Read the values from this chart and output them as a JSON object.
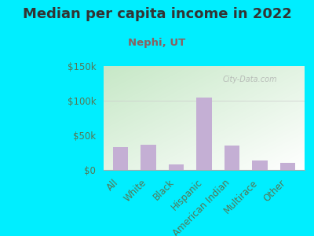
{
  "title": "Median per capita income in 2022",
  "subtitle": "Nephi, UT",
  "categories": [
    "All",
    "White",
    "Black",
    "Hispanic",
    "American Indian",
    "Multirace",
    "Other"
  ],
  "values": [
    33000,
    36000,
    8000,
    105000,
    35000,
    14000,
    10000
  ],
  "bar_color": "#c4afd4",
  "background_outer": "#00eeff",
  "background_plot_top_left": "#c8e8c8",
  "background_plot_bottom_right": "#f0faf0",
  "title_color": "#333333",
  "subtitle_color": "#8B6060",
  "tick_color": "#557755",
  "ylim": [
    0,
    150000
  ],
  "yticks": [
    0,
    50000,
    100000,
    150000
  ],
  "ytick_labels": [
    "$0",
    "$50k",
    "$100k",
    "$150k"
  ],
  "watermark": "City-Data.com",
  "title_fontsize": 13,
  "subtitle_fontsize": 9.5,
  "tick_fontsize": 8.5
}
